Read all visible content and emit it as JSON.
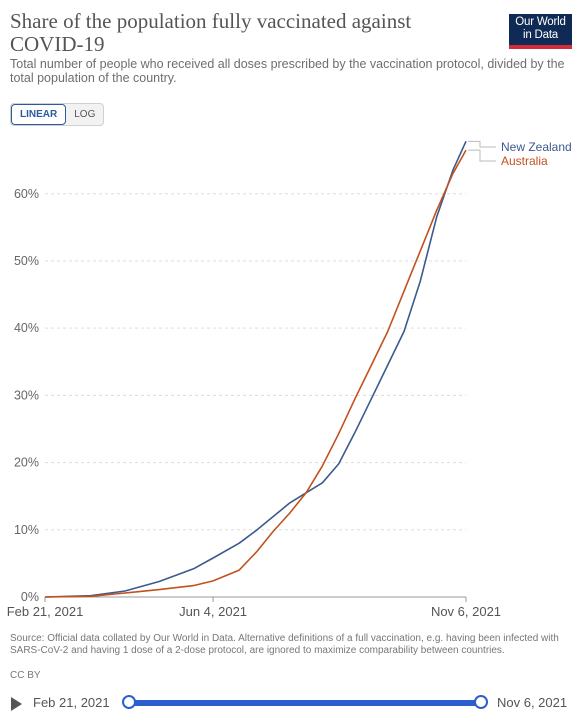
{
  "header": {
    "title": "Share of the population fully vaccinated against COVID-19",
    "subtitle": "Total number of people who received all doses prescribed by the vaccination protocol, divided by the total population of the country.",
    "logo_line1": "Our World",
    "logo_line2": "in Data"
  },
  "scale_toggle": {
    "linear_label": "LINEAR",
    "log_label": "LOG",
    "active": "LINEAR"
  },
  "chart_data": {
    "type": "line",
    "xlabel": "",
    "ylabel": "",
    "x_ticks": [
      "Feb 21, 2021",
      "Jun 4, 2021",
      "Nov 6, 2021"
    ],
    "xlim": [
      "2021-02-21",
      "2021-11-06"
    ],
    "ylim": [
      0,
      68
    ],
    "y_ticks": [
      0,
      10,
      20,
      30,
      40,
      50,
      60
    ],
    "y_tick_labels": [
      "0%",
      "10%",
      "20%",
      "30%",
      "40%",
      "50%",
      "60%"
    ],
    "grid": "horizontal-dashed",
    "legend": "right, labels at line ends",
    "x": [
      "2021-02-21",
      "2021-03-21",
      "2021-04-11",
      "2021-05-02",
      "2021-05-23",
      "2021-06-04",
      "2021-06-20",
      "2021-07-01",
      "2021-07-11",
      "2021-07-21",
      "2021-07-31",
      "2021-08-10",
      "2021-08-20",
      "2021-08-30",
      "2021-09-09",
      "2021-09-19",
      "2021-09-29",
      "2021-10-09",
      "2021-10-19",
      "2021-10-29",
      "2021-11-06"
    ],
    "series": [
      {
        "name": "New Zealand",
        "color": "#3c5a8e",
        "values": [
          0,
          0.2,
          0.9,
          2.3,
          4.2,
          5.8,
          8.0,
          10.0,
          12.0,
          14.0,
          15.5,
          17.0,
          19.8,
          24.5,
          29.5,
          34.5,
          39.5,
          47.0,
          56.5,
          63.5,
          67.8
        ]
      },
      {
        "name": "Australia",
        "color": "#c1521e",
        "values": [
          0,
          0.1,
          0.6,
          1.1,
          1.7,
          2.4,
          4.0,
          6.8,
          9.8,
          12.5,
          15.5,
          19.5,
          24.3,
          29.5,
          34.5,
          39.5,
          45.5,
          51.5,
          57.5,
          63.0,
          66.5
        ]
      }
    ]
  },
  "footer": {
    "source": "Source: Official data collated by Our World in Data. Alternative definitions of a full vaccination, e.g. having been infected with SARS-CoV-2 and having 1 dose of a 2-dose protocol, are ignored to maximize comparability between countries.",
    "license": "CC BY"
  },
  "timeline": {
    "start_label": "Feb 21, 2021",
    "end_label": "Nov 6, 2021",
    "start_fraction": 0,
    "end_fraction": 1
  }
}
